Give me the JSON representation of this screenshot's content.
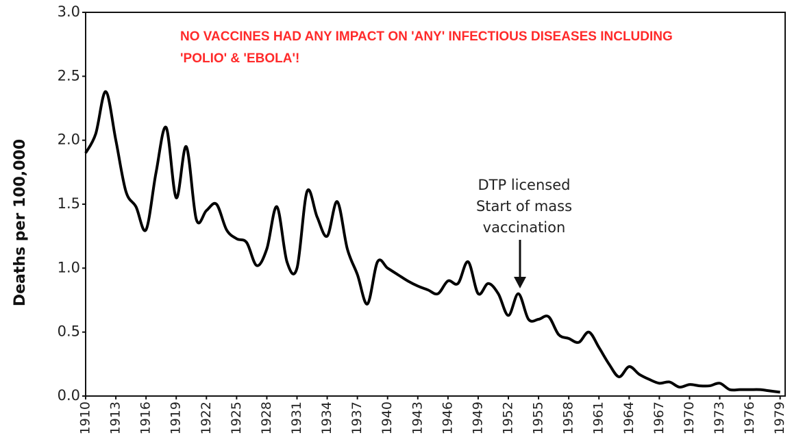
{
  "chart_data": {
    "type": "line",
    "title": [
      "NO VACCINES HAD ANY IMPACT ON 'ANY' INFECTIOUS DISEASES INCLUDING",
      "'POLIO' & 'EBOLA'!"
    ],
    "title_color": "#ff2a2a",
    "ylabel": "Deaths per 100,000",
    "annotation": [
      "DTP licensed",
      "Start of mass",
      "vaccination"
    ],
    "x": [
      1910,
      1911,
      1912,
      1913,
      1914,
      1915,
      1916,
      1917,
      1918,
      1919,
      1920,
      1921,
      1922,
      1923,
      1924,
      1925,
      1926,
      1927,
      1928,
      1929,
      1930,
      1931,
      1932,
      1933,
      1934,
      1935,
      1936,
      1937,
      1938,
      1939,
      1940,
      1941,
      1942,
      1943,
      1944,
      1945,
      1946,
      1947,
      1948,
      1949,
      1950,
      1951,
      1952,
      1953,
      1954,
      1955,
      1956,
      1957,
      1958,
      1959,
      1960,
      1961,
      1962,
      1963,
      1964,
      1965,
      1966,
      1967,
      1968,
      1969,
      1970,
      1971,
      1972,
      1973,
      1974,
      1975,
      1976,
      1977,
      1978,
      1979
    ],
    "series": [
      {
        "name": "Deaths",
        "color": "#000000",
        "values": [
          1.9,
          2.05,
          2.38,
          2.0,
          1.6,
          1.48,
          1.3,
          1.75,
          2.1,
          1.55,
          1.95,
          1.38,
          1.45,
          1.5,
          1.3,
          1.23,
          1.2,
          1.02,
          1.15,
          1.48,
          1.05,
          1.0,
          1.6,
          1.4,
          1.25,
          1.52,
          1.15,
          0.95,
          0.72,
          1.05,
          1.0,
          0.95,
          0.9,
          0.86,
          0.83,
          0.8,
          0.9,
          0.88,
          1.05,
          0.8,
          0.88,
          0.8,
          0.63,
          0.8,
          0.6,
          0.6,
          0.62,
          0.48,
          0.45,
          0.42,
          0.5,
          0.38,
          0.25,
          0.15,
          0.23,
          0.17,
          0.13,
          0.1,
          0.11,
          0.07,
          0.09,
          0.08,
          0.08,
          0.1,
          0.05,
          0.05,
          0.05,
          0.05,
          0.04,
          0.03
        ]
      }
    ],
    "xlim": [
      1910,
      1979.5
    ],
    "xticks": [
      1910,
      1913,
      1916,
      1919,
      1922,
      1925,
      1928,
      1931,
      1934,
      1937,
      1940,
      1943,
      1946,
      1949,
      1952,
      1955,
      1958,
      1961,
      1964,
      1967,
      1970,
      1973,
      1976,
      1979
    ],
    "ylim": [
      0,
      3
    ],
    "yticks": [
      {
        "value": 0,
        "label": "0.0"
      },
      0.5,
      {
        "value": 1,
        "label": "1.0"
      },
      1.5,
      {
        "value": 2,
        "label": "2.0"
      },
      2.5,
      {
        "value": 3,
        "label": "3.0"
      }
    ],
    "grid": false
  }
}
